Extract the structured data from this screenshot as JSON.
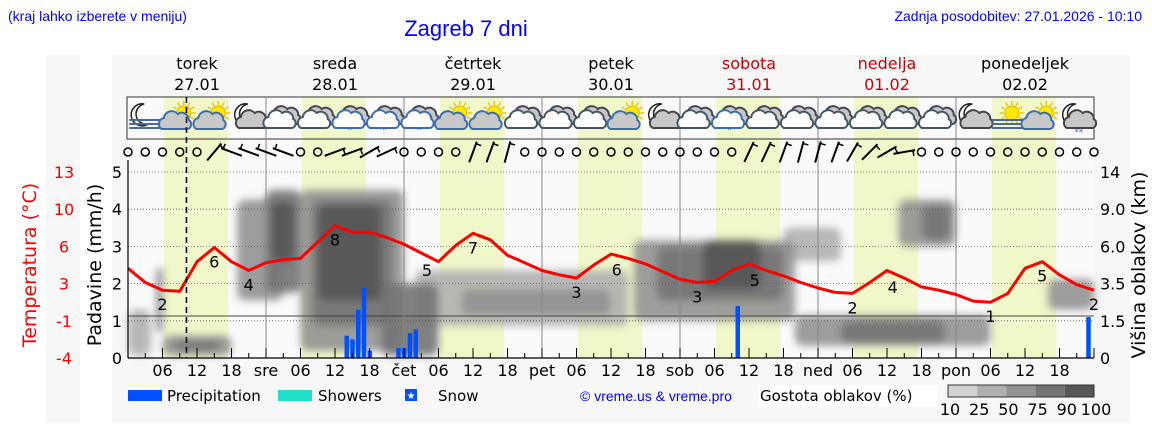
{
  "header": {
    "location_hint": "(kraj lahko izberete v meniju)",
    "title": "Zagreb 7 dni",
    "updated": "Zadnja posodobitev: 27.01.2026 - 10:10"
  },
  "days": [
    {
      "name": "torek",
      "date": "27.01",
      "weekend": false
    },
    {
      "name": "sreda",
      "date": "28.01",
      "weekend": false
    },
    {
      "name": "četrtek",
      "date": "29.01",
      "weekend": false
    },
    {
      "name": "petek",
      "date": "30.01",
      "weekend": false
    },
    {
      "name": "sobota",
      "date": "31.01",
      "weekend": true
    },
    {
      "name": "nedelja",
      "date": "01.02",
      "weekend": true
    },
    {
      "name": "ponedeljek",
      "date": "02.02",
      "weekend": false
    }
  ],
  "colors": {
    "temperature": "#ff0000",
    "precipitation": "#0050ff",
    "showers": "#20e0c8",
    "daylight": "#f0f7c9",
    "night": "#f7f7f7",
    "weekend_text": "#cc0000",
    "link": "#0000ff",
    "cloud_density": {
      "10": "#d2d2d2",
      "25": "#b0b0b0",
      "50": "#929292",
      "75": "#747474",
      "90": "#575757"
    }
  },
  "chart_data": {
    "type": "meteogram",
    "now": "27.01 10:10",
    "daylight": {
      "sunrise": "06:15",
      "sunset": "17:25"
    },
    "x_axis": {
      "tick_hours": [
        "06",
        "12",
        "18"
      ],
      "day_abbr": [
        "",
        "sre",
        "čet",
        "pet",
        "sob",
        "ned",
        "pon"
      ]
    },
    "precip_axis": {
      "label": "Padavine (mm/h)",
      "ticks": [
        "0",
        "1",
        "2",
        "3",
        "4",
        "5"
      ],
      "range": [
        0,
        5
      ],
      "grid": true
    },
    "temp_axis": {
      "label": "Temperatura (°C)",
      "ticks": [
        "-4",
        "-1",
        "3",
        "6",
        "10",
        "13"
      ],
      "range": [
        -4,
        13
      ]
    },
    "cloud_axis": {
      "label": "Višina oblakov (km)",
      "ticks": [
        "0",
        "1.5",
        "3.5",
        "6.0",
        "9.0",
        "14"
      ],
      "tick_values": [
        0,
        1.5,
        3.5,
        6,
        9,
        14
      ]
    },
    "weather_icons": [
      "moon-fog",
      "sun-cloud",
      "sun-cloud",
      "moon-cloud",
      "cloudy",
      "cloudy",
      "cloud-rain",
      "cloud-rain",
      "cloud-rain",
      "sun-cloud",
      "sun-cloud",
      "cloudy",
      "cloudy",
      "cloudy",
      "sun-cloud",
      "moon-cloud",
      "cloudy",
      "cloud-rain",
      "cloudy",
      "cloudy",
      "cloudy",
      "cloudy",
      "cloudy",
      "cloudy",
      "moon-cloud",
      "sun-fog",
      "sun-cloud",
      "moon-cloud-snow"
    ],
    "wind": [
      [
        0,
        0
      ],
      [
        0,
        0
      ],
      [
        0,
        0
      ],
      [
        0,
        0
      ],
      [
        0,
        0
      ],
      [
        40,
        10
      ],
      [
        290,
        10
      ],
      [
        290,
        10
      ],
      [
        290,
        10
      ],
      [
        290,
        10
      ],
      [
        0,
        0
      ],
      [
        0,
        0
      ],
      [
        70,
        10
      ],
      [
        70,
        10
      ],
      [
        60,
        10
      ],
      [
        65,
        10
      ],
      [
        0,
        0
      ],
      [
        0,
        0
      ],
      [
        0,
        0
      ],
      [
        0,
        0
      ],
      [
        20,
        10
      ],
      [
        20,
        10
      ],
      [
        15,
        10
      ],
      [
        0,
        0
      ],
      [
        0,
        0
      ],
      [
        0,
        0
      ],
      [
        0,
        0
      ],
      [
        0,
        0
      ],
      [
        0,
        0
      ],
      [
        0,
        0
      ],
      [
        0,
        0
      ],
      [
        0,
        0
      ],
      [
        0,
        0
      ],
      [
        0,
        0
      ],
      [
        0,
        0
      ],
      [
        0,
        0
      ],
      [
        25,
        10
      ],
      [
        25,
        10
      ],
      [
        20,
        10
      ],
      [
        15,
        10
      ],
      [
        15,
        10
      ],
      [
        20,
        10
      ],
      [
        30,
        10
      ],
      [
        45,
        10
      ],
      [
        60,
        10
      ],
      [
        80,
        10
      ],
      [
        0,
        0
      ],
      [
        0,
        0
      ],
      [
        0,
        0
      ],
      [
        0,
        0
      ],
      [
        0,
        0
      ],
      [
        0,
        0
      ],
      [
        0,
        0
      ],
      [
        0,
        0
      ],
      [
        0,
        0
      ],
      [
        0,
        0
      ],
      [
        0,
        0
      ]
    ],
    "temperature": [
      [
        "27.01 00",
        4.2
      ],
      [
        "27.01 03",
        2.9
      ],
      [
        "27.01 06",
        2.2
      ],
      [
        "27.01 09",
        2.1
      ],
      [
        "27.01 12",
        4.8
      ],
      [
        "27.01 15",
        6.1
      ],
      [
        "27.01 18",
        4.8
      ],
      [
        "27.01 21",
        4.0
      ],
      [
        "28.01 00",
        4.7
      ],
      [
        "28.01 03",
        5.0
      ],
      [
        "28.01 06",
        5.1
      ],
      [
        "28.01 09",
        6.6
      ],
      [
        "28.01 12",
        8.1
      ],
      [
        "28.01 15",
        7.5
      ],
      [
        "28.01 18",
        7.5
      ],
      [
        "28.01 21",
        7.0
      ],
      [
        "29.01 00",
        6.4
      ],
      [
        "29.01 03",
        5.6
      ],
      [
        "29.01 06",
        4.8
      ],
      [
        "29.01 09",
        6.3
      ],
      [
        "29.01 12",
        7.4
      ],
      [
        "29.01 15",
        6.8
      ],
      [
        "29.01 18",
        5.4
      ],
      [
        "29.01 21",
        4.7
      ],
      [
        "30.01 00",
        4.0
      ],
      [
        "30.01 03",
        3.6
      ],
      [
        "30.01 06",
        3.3
      ],
      [
        "30.01 09",
        4.5
      ],
      [
        "30.01 12",
        5.5
      ],
      [
        "30.01 15",
        5.1
      ],
      [
        "30.01 18",
        4.6
      ],
      [
        "30.01 21",
        3.9
      ],
      [
        "31.01 00",
        3.2
      ],
      [
        "31.01 03",
        2.9
      ],
      [
        "31.01 06",
        3.0
      ],
      [
        "31.01 09",
        4.0
      ],
      [
        "31.01 12",
        4.6
      ],
      [
        "31.01 15",
        4.0
      ],
      [
        "31.01 18",
        3.5
      ],
      [
        "31.01 21",
        2.9
      ],
      [
        "01.02 00",
        2.4
      ],
      [
        "01.02 03",
        2.0
      ],
      [
        "01.02 06",
        1.9
      ],
      [
        "01.02 09",
        2.9
      ],
      [
        "01.02 12",
        4.0
      ],
      [
        "01.02 15",
        3.3
      ],
      [
        "01.02 18",
        2.5
      ],
      [
        "01.02 21",
        2.2
      ],
      [
        "02.02 00",
        1.8
      ],
      [
        "02.02 03",
        1.2
      ],
      [
        "02.02 06",
        1.1
      ],
      [
        "02.02 09",
        1.9
      ],
      [
        "02.02 12",
        4.2
      ],
      [
        "02.02 15",
        4.8
      ],
      [
        "02.02 18",
        3.6
      ],
      [
        "02.02 21",
        2.7
      ],
      [
        "02.02 24",
        2.2
      ]
    ],
    "temp_labels": [
      [
        "27.01 06",
        "2"
      ],
      [
        "27.01 15",
        "6"
      ],
      [
        "27.01 21",
        "4"
      ],
      [
        "28.01 12",
        "8"
      ],
      [
        "29.01 04",
        "5"
      ],
      [
        "29.01 12",
        "7"
      ],
      [
        "30.01 06",
        "3"
      ],
      [
        "30.01 13",
        "6"
      ],
      [
        "31.01 03",
        "3"
      ],
      [
        "31.01 13",
        "5"
      ],
      [
        "01.02 06",
        "2"
      ],
      [
        "01.02 13",
        "4"
      ],
      [
        "02.02 06",
        "1"
      ],
      [
        "02.02 15",
        "5"
      ],
      [
        "02.02 24",
        "2"
      ]
    ],
    "precipitation": [
      [
        "28.01 14",
        0.6
      ],
      [
        "28.01 15",
        0.5
      ],
      [
        "28.01 16",
        1.3
      ],
      [
        "28.01 17",
        1.9
      ],
      [
        "28.01 18",
        0.2
      ],
      [
        "28.01 23",
        0.27
      ],
      [
        "29.01 00",
        0.27
      ],
      [
        "29.01 01",
        0.67
      ],
      [
        "29.01 02",
        0.77
      ],
      [
        "31.01 10",
        1.4
      ],
      [
        "02.02 23",
        1.1
      ]
    ],
    "cloud_areas": [
      [
        "27.01 00",
        "27.01 04",
        0.1,
        2.1,
        25
      ],
      [
        "27.01 05",
        "27.01 06",
        1.0,
        4.6,
        75
      ],
      [
        "27.01 06",
        "27.01 18",
        0.1,
        0.9,
        50
      ],
      [
        "27.01 08",
        "27.01 16",
        0.3,
        0.7,
        75
      ],
      [
        "27.01 19",
        "28.01 03",
        2.6,
        10.3,
        50
      ],
      [
        "28.01 00",
        "28.01 06",
        3.0,
        11.6,
        75
      ],
      [
        "28.01 01",
        "28.01 05",
        5.0,
        10.0,
        90
      ],
      [
        "28.01 06",
        "29.01 00",
        0.3,
        11.6,
        50
      ],
      [
        "28.01 08",
        "28.01 22",
        1.3,
        10.3,
        75
      ],
      [
        "28.01 09",
        "28.01 20",
        2.6,
        9.5,
        90
      ],
      [
        "28.01 20",
        "29.01 06",
        0.1,
        3.5,
        75
      ],
      [
        "29.01 02",
        "30.01 15",
        1.3,
        4.4,
        25
      ],
      [
        "29.01 10",
        "30.01 12",
        1.8,
        3.2,
        50
      ],
      [
        "30.01 16",
        "31.01 20",
        1.5,
        6.5,
        50
      ],
      [
        "30.01 20",
        "31.01 18",
        2.6,
        6.0,
        75
      ],
      [
        "31.01 04",
        "31.01 14",
        3.2,
        6.5,
        90
      ],
      [
        "31.01 18",
        "01.02 04",
        5.0,
        7.5,
        25
      ],
      [
        "31.01 20",
        "02.02 06",
        0.5,
        1.8,
        50
      ],
      [
        "01.02 04",
        "01.02 22",
        0.6,
        1.5,
        75
      ],
      [
        "01.02 14",
        "02.02 00",
        6.0,
        10.3,
        50
      ],
      [
        "01.02 18",
        "01.02 23",
        6.5,
        9.5,
        75
      ],
      [
        "02.02 16",
        "02.02 24",
        2.1,
        3.8,
        50
      ]
    ]
  },
  "legend": {
    "precipitation": "Precipitation",
    "showers": "Showers",
    "snow": "Snow",
    "copyright": "© vreme.us & vreme.pro",
    "cloud_title": "Gostota oblakov (%)",
    "cloud_steps": [
      "10",
      "25",
      "50",
      "75",
      "90",
      "100"
    ]
  }
}
